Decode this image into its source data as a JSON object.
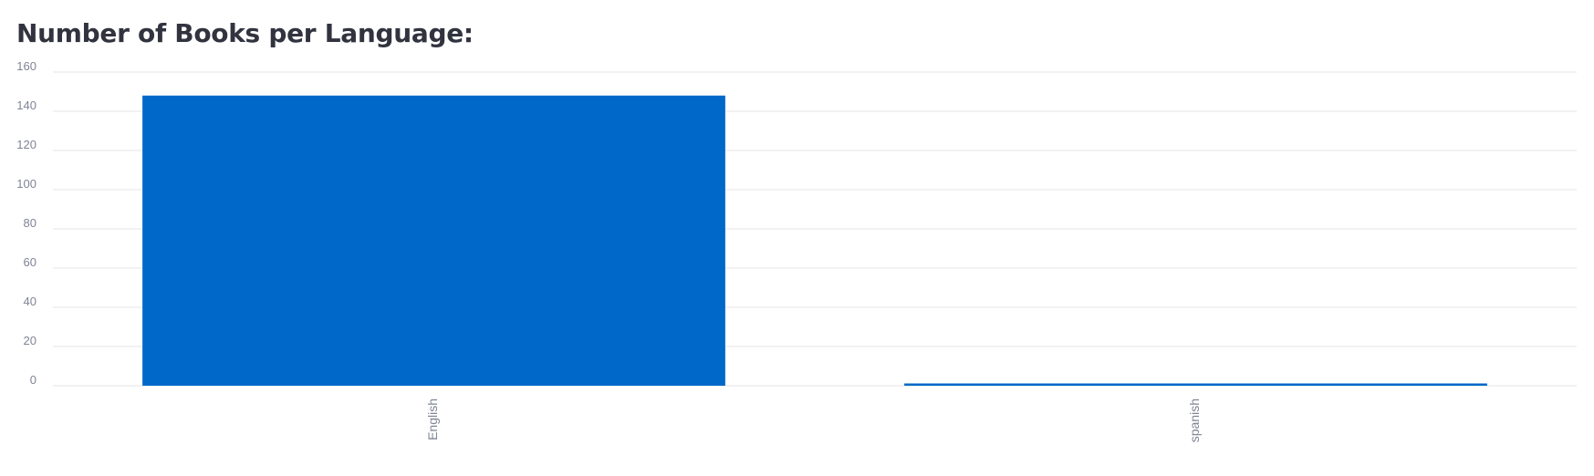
{
  "page": {
    "title": "Number of Books per Language:"
  },
  "colors": {
    "bar": "#0068c9",
    "grid": "#e6e6ea",
    "axis_text": "#808495",
    "title": "#31333f"
  },
  "chart_data": {
    "type": "bar",
    "title": "Number of Books per Language:",
    "xlabel": "",
    "ylabel": "",
    "categories": [
      "English",
      "spanish"
    ],
    "values": [
      148,
      1
    ],
    "ylim": [
      0,
      160
    ],
    "yticks": [
      0,
      20,
      40,
      60,
      80,
      100,
      120,
      140,
      160
    ],
    "grid": true,
    "legend": "none",
    "x_label_orientation": "vertical"
  }
}
